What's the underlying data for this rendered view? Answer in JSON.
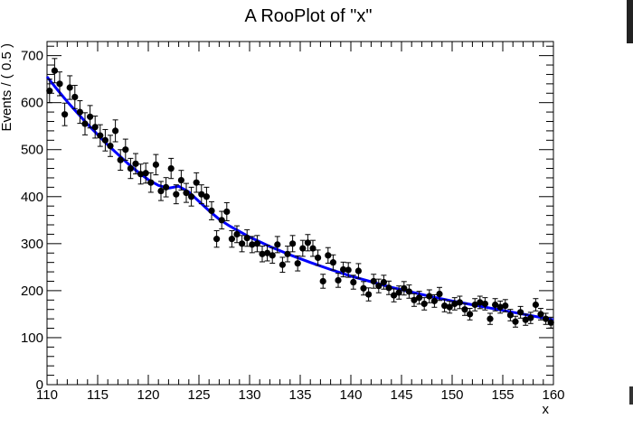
{
  "chart_data": {
    "type": "scatter",
    "title": "A RooPlot of \"x\"",
    "xlabel": "x",
    "ylabel": "Events / ( 0.5 )",
    "xlim": [
      110,
      160
    ],
    "ylim": [
      0,
      730
    ],
    "x_ticks": [
      "110",
      "115",
      "120",
      "125",
      "130",
      "135",
      "140",
      "145",
      "150",
      "155",
      "160"
    ],
    "y_ticks": [
      "0",
      "100",
      "200",
      "300",
      "400",
      "500",
      "600",
      "700"
    ],
    "grid": false,
    "legend": "none",
    "colors": {
      "points": "#000000",
      "fit_curve": "#0000ff"
    },
    "series": [
      {
        "type": "points_with_errors",
        "x": [
          110.25,
          110.75,
          111.25,
          111.75,
          112.25,
          112.75,
          113.25,
          113.75,
          114.25,
          114.75,
          115.25,
          115.75,
          116.25,
          116.75,
          117.25,
          117.75,
          118.25,
          118.75,
          119.25,
          119.75,
          120.25,
          120.75,
          121.25,
          121.75,
          122.25,
          122.75,
          123.25,
          123.75,
          124.25,
          124.75,
          125.25,
          125.75,
          126.25,
          126.75,
          127.25,
          127.75,
          128.25,
          128.75,
          129.25,
          129.75,
          130.25,
          130.75,
          131.25,
          131.75,
          132.25,
          132.75,
          133.25,
          133.75,
          134.25,
          134.75,
          135.25,
          135.75,
          136.25,
          136.75,
          137.25,
          137.75,
          138.25,
          138.75,
          139.25,
          139.75,
          140.25,
          140.75,
          141.25,
          141.75,
          142.25,
          142.75,
          143.25,
          143.75,
          144.25,
          144.75,
          145.25,
          145.75,
          146.25,
          146.75,
          147.25,
          147.75,
          148.25,
          148.75,
          149.25,
          149.75,
          150.25,
          150.75,
          151.25,
          151.75,
          152.25,
          152.75,
          153.25,
          153.75,
          154.25,
          154.75,
          155.25,
          155.75,
          156.25,
          156.75,
          157.25,
          157.75,
          158.25,
          158.75,
          159.25,
          159.75
        ],
        "y": [
          625,
          668,
          640,
          575,
          632,
          612,
          580,
          555,
          570,
          548,
          530,
          520,
          508,
          540,
          478,
          500,
          460,
          470,
          448,
          450,
          430,
          468,
          412,
          420,
          460,
          405,
          435,
          408,
          400,
          430,
          405,
          400,
          370,
          310,
          350,
          368,
          310,
          320,
          300,
          312,
          298,
          300,
          278,
          280,
          275,
          298,
          255,
          278,
          300,
          258,
          290,
          302,
          290,
          270,
          220,
          275,
          260,
          222,
          245,
          244,
          218,
          242,
          205,
          192,
          220,
          210,
          218,
          206,
          190,
          196,
          205,
          198,
          180,
          185,
          172,
          188,
          178,
          193,
          168,
          165,
          172,
          175,
          160,
          150,
          170,
          175,
          172,
          140,
          170,
          165,
          168,
          148,
          134,
          154,
          138,
          142,
          170,
          150,
          140,
          132
        ]
      },
      {
        "type": "fit_curve",
        "x": [
          110,
          111,
          112,
          113,
          114,
          115,
          116,
          117,
          118,
          119,
          120,
          121,
          122,
          123,
          124,
          125,
          126,
          127,
          128,
          129,
          130,
          132,
          134,
          136,
          138,
          140,
          142,
          144,
          146,
          148,
          150,
          152,
          154,
          156,
          158,
          160
        ],
        "y": [
          655,
          628,
          602,
          578,
          554,
          532,
          510,
          490,
          470,
          452,
          436,
          424,
          418,
          422,
          410,
          390,
          370,
          352,
          338,
          326,
          314,
          294,
          276,
          260,
          245,
          231,
          219,
          207,
          197,
          187,
          178,
          170,
          162,
          154,
          146,
          138
        ]
      }
    ]
  }
}
